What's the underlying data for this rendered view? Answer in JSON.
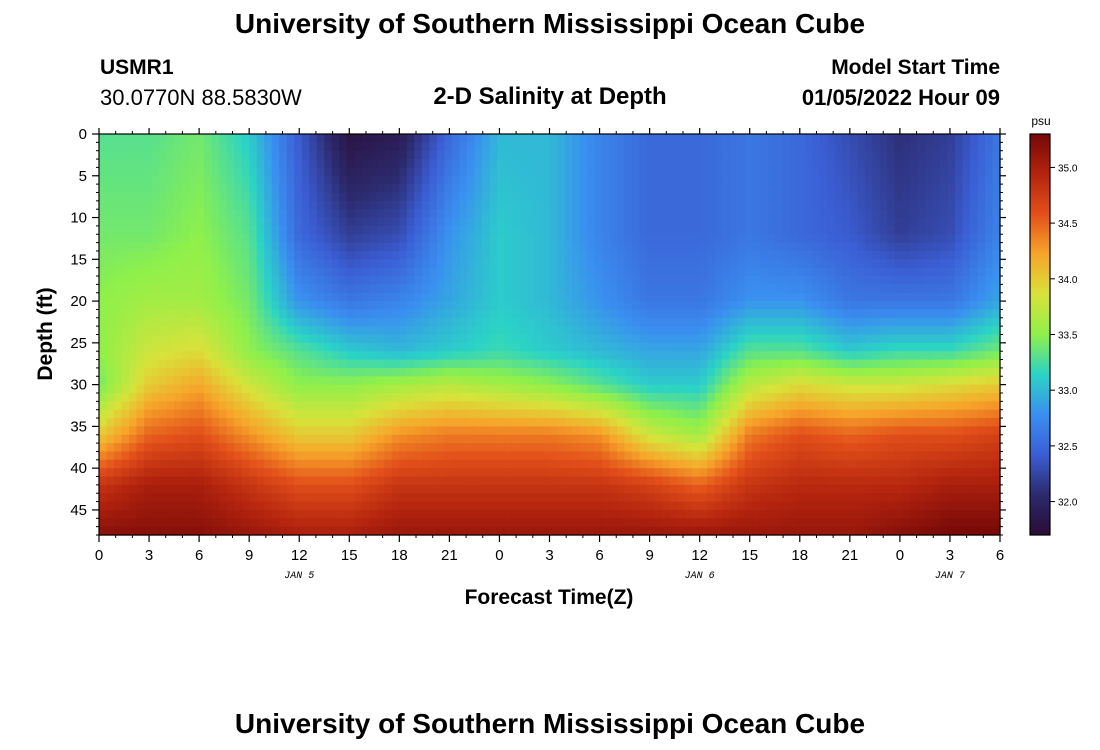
{
  "page": {
    "title": "University of Southern Mississippi Ocean Cube",
    "footer_title": "University of Southern Mississippi Ocean Cube",
    "station_id": "USMR1",
    "station_coords": "30.0770N  88.5830W",
    "subtitle": "2-D Salinity at Depth",
    "model_start_label": "Model Start Time",
    "model_start_value": "01/05/2022 Hour 09"
  },
  "colors": {
    "ramp": [
      "#2a0c35",
      "#2c2a6e",
      "#3b5ed4",
      "#3a8ff0",
      "#2bd3c6",
      "#8ff04a",
      "#d8e23a",
      "#f7a52a",
      "#e3501a",
      "#b4240e",
      "#750808"
    ]
  },
  "chart_data": {
    "type": "heatmap",
    "xlabel": "Forecast Time(Z)",
    "ylabel": "Depth (ft)",
    "x_ticks": [
      "0",
      "3",
      "6",
      "9",
      "12",
      "15",
      "18",
      "21",
      "0",
      "3",
      "6",
      "9",
      "12",
      "15",
      "18",
      "21",
      "0",
      "3",
      "6"
    ],
    "x_range_hours": [
      0,
      54
    ],
    "day_labels": [
      {
        "label": "JAN 5",
        "hour": 12
      },
      {
        "label": "JAN 6",
        "hour": 36
      },
      {
        "label": "JAN 7",
        "hour": 51
      }
    ],
    "y_range": [
      0,
      48
    ],
    "y_ticks": [
      0,
      5,
      10,
      15,
      20,
      25,
      30,
      35,
      40,
      45
    ],
    "colorbar": {
      "unit": "psu",
      "min": 31.7,
      "max": 35.3,
      "ticks": [
        "32.0",
        "32.5",
        "33.0",
        "33.5",
        "34.0",
        "34.5",
        "35.0"
      ]
    },
    "depth_levels": [
      0,
      12,
      20,
      26,
      30,
      36,
      42,
      48
    ],
    "hours": [
      0,
      3,
      6,
      9,
      12,
      15,
      18,
      21,
      24,
      27,
      30,
      33,
      36,
      39,
      42,
      45,
      48,
      51,
      54
    ],
    "salinity": [
      [
        33.3,
        33.4,
        33.5,
        33.5,
        33.4,
        34.0,
        34.8,
        35.2
      ],
      [
        33.3,
        33.4,
        33.6,
        33.8,
        34.0,
        34.5,
        35.0,
        35.2
      ],
      [
        33.4,
        33.5,
        33.6,
        33.9,
        34.2,
        34.6,
        35.0,
        35.2
      ],
      [
        33.1,
        33.3,
        33.4,
        33.5,
        33.8,
        34.3,
        34.8,
        35.1
      ],
      [
        32.4,
        32.5,
        32.8,
        33.3,
        33.5,
        34.0,
        34.6,
        35.0
      ],
      [
        31.8,
        32.2,
        32.6,
        33.1,
        33.5,
        34.0,
        34.6,
        35.0
      ],
      [
        31.9,
        32.3,
        32.7,
        33.0,
        33.6,
        34.3,
        34.8,
        35.1
      ],
      [
        32.5,
        32.8,
        32.9,
        33.1,
        33.7,
        34.4,
        34.8,
        35.1
      ],
      [
        33.0,
        33.1,
        33.1,
        33.2,
        33.6,
        34.4,
        34.8,
        35.1
      ],
      [
        33.0,
        33.0,
        33.0,
        33.1,
        33.5,
        34.4,
        34.8,
        35.1
      ],
      [
        32.7,
        32.7,
        32.8,
        33.0,
        33.3,
        34.3,
        34.8,
        35.1
      ],
      [
        32.5,
        32.5,
        32.6,
        32.9,
        33.1,
        33.8,
        34.7,
        35.1
      ],
      [
        32.5,
        32.5,
        32.6,
        32.9,
        33.1,
        33.6,
        34.5,
        35.1
      ],
      [
        32.6,
        32.6,
        32.8,
        33.3,
        33.7,
        34.4,
        34.8,
        35.1
      ],
      [
        32.5,
        32.5,
        32.8,
        33.3,
        33.9,
        34.6,
        34.9,
        35.1
      ],
      [
        32.3,
        32.4,
        32.6,
        33.1,
        33.8,
        34.5,
        34.9,
        35.1
      ],
      [
        32.1,
        32.2,
        32.6,
        33.2,
        33.8,
        34.6,
        34.9,
        35.2
      ],
      [
        32.2,
        32.3,
        32.6,
        33.2,
        33.9,
        34.6,
        35.0,
        35.3
      ],
      [
        32.6,
        32.7,
        32.9,
        33.4,
        34.0,
        34.7,
        35.0,
        35.3
      ]
    ]
  }
}
